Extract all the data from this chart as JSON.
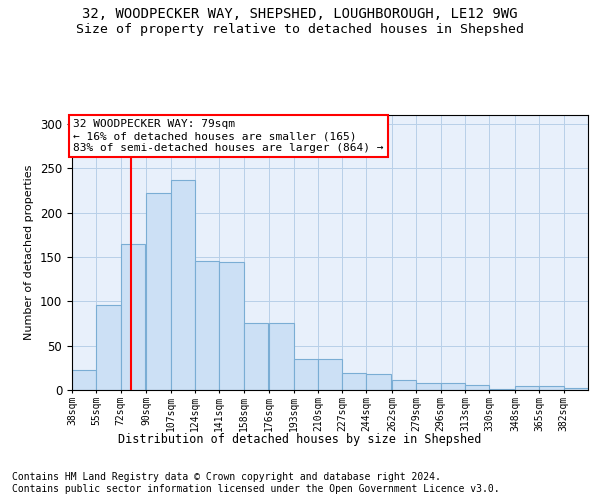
{
  "title1": "32, WOODPECKER WAY, SHEPSHED, LOUGHBOROUGH, LE12 9WG",
  "title2": "Size of property relative to detached houses in Shepshed",
  "xlabel": "Distribution of detached houses by size in Shepshed",
  "ylabel": "Number of detached properties",
  "bar_color": "#cce0f5",
  "bar_edge_color": "#7aadd4",
  "grid_color": "#b8cfe8",
  "bg_color": "#e8f0fb",
  "vline_color": "red",
  "vline_x": 79,
  "annotation_text": "32 WOODPECKER WAY: 79sqm\n← 16% of detached houses are smaller (165)\n83% of semi-detached houses are larger (864) →",
  "categories": [
    "38sqm",
    "55sqm",
    "72sqm",
    "90sqm",
    "107sqm",
    "124sqm",
    "141sqm",
    "158sqm",
    "176sqm",
    "193sqm",
    "210sqm",
    "227sqm",
    "244sqm",
    "262sqm",
    "279sqm",
    "296sqm",
    "313sqm",
    "330sqm",
    "348sqm",
    "365sqm",
    "382sqm"
  ],
  "bin_edges": [
    38,
    55,
    72,
    90,
    107,
    124,
    141,
    158,
    176,
    193,
    210,
    227,
    244,
    262,
    279,
    296,
    313,
    330,
    348,
    365,
    382
  ],
  "values": [
    22,
    96,
    165,
    222,
    237,
    145,
    144,
    76,
    76,
    35,
    35,
    19,
    18,
    11,
    8,
    8,
    6,
    1,
    4,
    4,
    2
  ],
  "ylim": [
    0,
    310
  ],
  "yticks": [
    0,
    50,
    100,
    150,
    200,
    250,
    300
  ],
  "footnote": "Contains HM Land Registry data © Crown copyright and database right 2024.\nContains public sector information licensed under the Open Government Licence v3.0.",
  "title1_fontsize": 10,
  "title2_fontsize": 9.5,
  "annotation_fontsize": 8,
  "footnote_fontsize": 7,
  "xlabel_fontsize": 8.5,
  "ylabel_fontsize": 8
}
